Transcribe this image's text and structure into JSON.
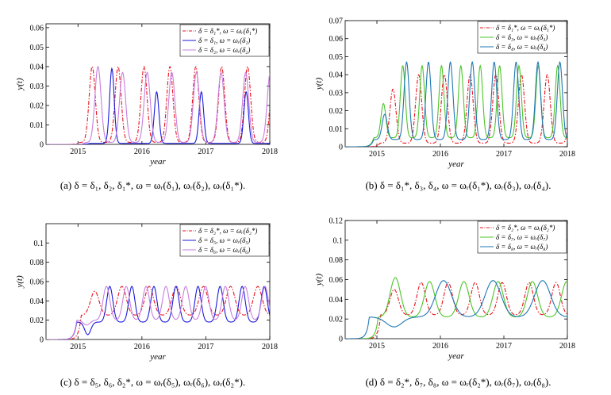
{
  "chart_data": [
    {
      "type": "line",
      "panel": "a",
      "caption": "(a)  δ = δ₁,  δ₂,  δ₁*,  ω = ωᵣ(δ₁),  ωᵣ(δ₂),  ωᵣ(δ₁*).",
      "xlabel": "year",
      "ylabel": "y(t)",
      "xlim": [
        2014.5,
        2018
      ],
      "ylim": [
        0,
        0.062
      ],
      "xticks": [
        2015,
        2016,
        2017,
        2018
      ],
      "xtick_labels": [
        "2015",
        "2016",
        "2017",
        "2018"
      ],
      "yticks": [
        0,
        0.01,
        0.02,
        0.03,
        0.04,
        0.05,
        0.06
      ],
      "ytick_labels": [
        "0",
        "0.01",
        "0.02",
        "0.03",
        "0.04",
        "0.05",
        "0.06"
      ],
      "legend_position": "top-right",
      "series": [
        {
          "name": "δ = δ₁*,  ω = ωᵣ(δ₁*)",
          "color": "#e8141e",
          "style": "dashdot",
          "onset": 2015.02,
          "period": 0.405,
          "base": 0.001,
          "amp": 0.04,
          "width": 0.1,
          "growth": 0.0
        },
        {
          "name": "δ = δ₁,  ω = ωᵣ(δ₁)",
          "color": "#1a1adc",
          "style": "solid",
          "onset": 2015.18,
          "period": 0.7,
          "base": 0.0005,
          "amp": 0.027,
          "width": 0.075,
          "first_amp": 0.039
        },
        {
          "name": "δ = δ₂,  ω = ωᵣ(δ₂)",
          "color": "#c77fe0",
          "style": "solid",
          "onset": 2015.12,
          "period": 0.385,
          "base": 0.001,
          "amp": 0.037,
          "width": 0.1,
          "first_amp": 0.04
        }
      ]
    },
    {
      "type": "line",
      "panel": "b",
      "caption": "(b)  δ = δ₁*,  δ₃,  δ₄,  ω = ωᵣ(δ₁*),  ωᵣ(δ₃),  ωᵣ(δ₄).",
      "xlabel": "year",
      "ylabel": "y(t)",
      "xlim": [
        2014.5,
        2018
      ],
      "ylim": [
        0,
        0.07
      ],
      "xticks": [
        2015,
        2016,
        2017,
        2018
      ],
      "xtick_labels": [
        "2015",
        "2016",
        "2017",
        "2018"
      ],
      "yticks": [
        0,
        0.01,
        0.02,
        0.03,
        0.04,
        0.05,
        0.06,
        0.07
      ],
      "ytick_labels": [
        "0",
        "0.01",
        "0.02",
        "0.03",
        "0.04",
        "0.05",
        "0.06",
        "0.07"
      ],
      "legend_position": "top-right",
      "series": [
        {
          "name": "δ = δ₁*,  ω = ωᵣ(δ₁*)",
          "color": "#e8141e",
          "style": "dashdot",
          "onset": 2015.05,
          "period": 0.405,
          "base": 0.002,
          "amp": 0.04,
          "width": 0.1,
          "first_amp": 0.032
        },
        {
          "name": "δ = δ₃,  ω = ωᵣ(δ₃)",
          "color": "#4cc52a",
          "style": "solid",
          "onset": 2014.95,
          "period": 0.305,
          "base": 0.005,
          "amp": 0.045,
          "width": 0.08,
          "first_amp": 0.024
        },
        {
          "name": "δ = δ₄,  ω = ωᵣ(δ₄)",
          "color": "#1f77b4",
          "style": "solid",
          "onset": 2014.95,
          "period": 0.345,
          "base": 0.004,
          "amp": 0.047,
          "width": 0.085,
          "first_amp": 0.018
        }
      ]
    },
    {
      "type": "line",
      "panel": "c",
      "caption": "(c)  δ = δ₅,  δ₆,  δ₂*,  ω = ωᵣ(δ₅),  ωᵣ(δ₆),  ωᵣ(δ₂*).",
      "xlabel": "year",
      "ylabel": "y(t)",
      "xlim": [
        2014.5,
        2018
      ],
      "ylim": [
        0,
        0.12
      ],
      "xticks": [
        2015,
        2016,
        2017,
        2018
      ],
      "xtick_labels": [
        "2015",
        "2016",
        "2017",
        "2018"
      ],
      "yticks": [
        0,
        0.02,
        0.04,
        0.06,
        0.08,
        0.1
      ],
      "ytick_labels": [
        "0",
        "0.02",
        "0.04",
        "0.06",
        "0.08",
        "0.1"
      ],
      "legend_position": "top-right",
      "series": [
        {
          "name": "δ = δ₂*,  ω = ωᵣ(δ₂*)",
          "color": "#e8141e",
          "style": "dashdot",
          "onset": 2015.05,
          "period": 0.425,
          "base": 0.025,
          "amp": 0.055,
          "width": 0.14,
          "first_amp": 0.05
        },
        {
          "name": "δ = δ₅,  ω = ωᵣ(δ₅)",
          "color": "#1a1adc",
          "style": "solid",
          "onset": 2014.98,
          "period": 0.345,
          "base": 0.018,
          "amp": 0.055,
          "width": 0.1,
          "first_amp": 0.005
        },
        {
          "name": "δ = δ₆,  ω = ωᵣ(δ₆)",
          "color": "#c77fe0",
          "style": "solid",
          "onset": 2014.98,
          "period": 0.31,
          "base": 0.02,
          "amp": 0.055,
          "width": 0.11,
          "first_amp": 0.015
        }
      ]
    },
    {
      "type": "line",
      "panel": "d",
      "caption": "(d)  δ = δ₂*,  δ₇,  δ₈,  ω = ωᵣ(δ₂*),  ωᵣ(δ₇),  ωᵣ(δ₈).",
      "xlabel": "year",
      "ylabel": "y(t)",
      "xlim": [
        2014.5,
        2018
      ],
      "ylim": [
        0,
        0.12
      ],
      "xticks": [
        2015,
        2016,
        2017,
        2018
      ],
      "xtick_labels": [
        "2015",
        "2016",
        "2017",
        "2018"
      ],
      "yticks": [
        0,
        0.02,
        0.04,
        0.06,
        0.08,
        0.1,
        0.12
      ],
      "ytick_labels": [
        "0",
        "0.02",
        "0.04",
        "0.06",
        "0.08",
        "0.1",
        "0.12"
      ],
      "legend_position": "top-right",
      "series": [
        {
          "name": "δ = δ₂*,  ω = ωᵣ(δ₂*)",
          "color": "#e8141e",
          "style": "dashdot",
          "onset": 2015.06,
          "period": 0.425,
          "base": 0.024,
          "amp": 0.057,
          "width": 0.14,
          "first_amp": 0.05
        },
        {
          "name": "δ = δ₇,  ω = ωᵣ(δ₇)",
          "color": "#4cc52a",
          "style": "solid",
          "onset": 2015.02,
          "period": 0.54,
          "base": 0.022,
          "amp": 0.058,
          "width": 0.17,
          "first_amp": 0.062
        },
        {
          "name": "δ = δ₈,  ω = ωᵣ(δ₈)",
          "color": "#1f77b4",
          "style": "solid",
          "onset": 2014.88,
          "period": 0.78,
          "base": 0.022,
          "amp": 0.059,
          "width": 0.26,
          "first_amp": 0.012
        }
      ]
    }
  ]
}
